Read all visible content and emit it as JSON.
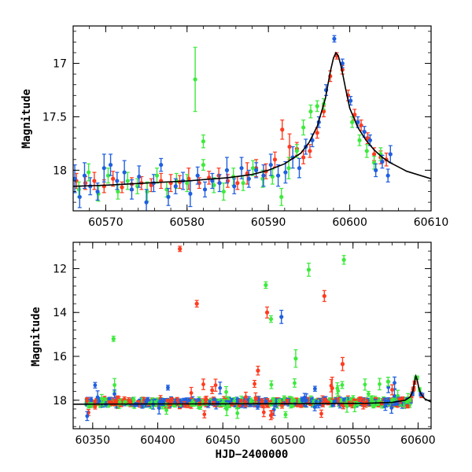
{
  "chart_data": [
    {
      "type": "scatter",
      "ylabel": "Magnitude",
      "xlabel": "",
      "xlim": [
        60566,
        60610
      ],
      "ylim": [
        18.38,
        16.65
      ],
      "y_inverted": true,
      "x_ticks": [
        60570,
        60580,
        60590,
        60600,
        60610
      ],
      "y_ticks": [
        17,
        17.5,
        18
      ],
      "y_tick_labels": [
        "17",
        "17.5",
        "18"
      ],
      "colors": {
        "red": "#ff3b1f",
        "green": "#3dea3d",
        "blue": "#1f5fe0",
        "model": "#000000"
      },
      "model_curve": {
        "description": "microlensing-like model",
        "x": [
          60566,
          60570,
          60575,
          60580,
          60585,
          60588,
          60590,
          60592,
          60594,
          60595,
          60596,
          60597,
          60597.6,
          60598,
          60598.3,
          60598.6,
          60599,
          60599.5,
          60600,
          60601,
          60602,
          60603,
          60604,
          60605,
          60607,
          60610
        ],
        "y": [
          18.15,
          18.14,
          18.12,
          18.1,
          18.07,
          18.04,
          18.0,
          17.94,
          17.84,
          17.74,
          17.59,
          17.33,
          17.08,
          16.95,
          16.9,
          16.93,
          17.05,
          17.24,
          17.42,
          17.6,
          17.72,
          17.81,
          17.88,
          17.93,
          18.01,
          18.08
        ]
      },
      "series": [
        {
          "name": "",
          "color": "red",
          "points": [
            [
              60566.4,
              18.1,
              0.07
            ],
            [
              60567.5,
              18.12,
              0.06
            ],
            [
              60568.6,
              18.1,
              0.08
            ],
            [
              60569.8,
              18.15,
              0.06
            ],
            [
              60570.9,
              18.08,
              0.07
            ],
            [
              60572,
              18.16,
              0.05
            ],
            [
              60573.2,
              18.13,
              0.06
            ],
            [
              60574.4,
              18.12,
              0.06
            ],
            [
              60575.6,
              18.14,
              0.06
            ],
            [
              60576.8,
              18.1,
              0.07
            ],
            [
              60578,
              18.12,
              0.08
            ],
            [
              60579.1,
              18.11,
              0.06
            ],
            [
              60580.2,
              18.08,
              0.1
            ],
            [
              60581.5,
              18.12,
              0.05
            ],
            [
              60582.7,
              18.07,
              0.06
            ],
            [
              60583.9,
              18.05,
              0.07
            ],
            [
              60585,
              18.1,
              0.06
            ],
            [
              60586.2,
              18.12,
              0.06
            ],
            [
              60587.4,
              18.03,
              0.1
            ],
            [
              60588.5,
              17.98,
              0.08
            ],
            [
              60589.7,
              18.01,
              0.07
            ],
            [
              60590.8,
              17.9,
              0.07
            ],
            [
              60591.7,
              17.62,
              0.09
            ],
            [
              60592.6,
              17.78,
              0.12
            ],
            [
              60593.5,
              17.8,
              0.06
            ],
            [
              60594.3,
              17.88,
              0.06
            ],
            [
              60595.1,
              17.82,
              0.06
            ],
            [
              60596,
              17.65,
              0.05
            ],
            [
              60596.8,
              17.45,
              0.05
            ],
            [
              60597.6,
              17.12,
              0.05
            ],
            [
              60598.4,
              16.93,
              0.03
            ],
            [
              60599.1,
              17.06,
              0.04
            ],
            [
              60599.8,
              17.3,
              0.05
            ],
            [
              60600.6,
              17.48,
              0.05
            ],
            [
              60601.4,
              17.58,
              0.05
            ],
            [
              60602.2,
              17.7,
              0.05
            ],
            [
              60603,
              17.85,
              0.06
            ],
            [
              60603.8,
              17.88,
              0.06
            ],
            [
              60604.5,
              17.9,
              0.06
            ]
          ]
        },
        {
          "name": "",
          "color": "green",
          "points": [
            [
              60566.7,
              18.18,
              0.07
            ],
            [
              60567.9,
              18.02,
              0.08
            ],
            [
              60569.1,
              18.22,
              0.07
            ],
            [
              60570.3,
              18.05,
              0.07
            ],
            [
              60571.5,
              18.2,
              0.07
            ],
            [
              60572.7,
              18.1,
              0.08
            ],
            [
              60573.9,
              18.15,
              0.07
            ],
            [
              60575.1,
              18.2,
              0.09
            ],
            [
              60576.3,
              18.05,
              0.07
            ],
            [
              60577.5,
              18.18,
              0.07
            ],
            [
              60578.7,
              18.1,
              0.07
            ],
            [
              60580,
              18.12,
              0.08
            ],
            [
              60581,
              17.15,
              0.3
            ],
            [
              60582,
              17.73,
              0.06
            ],
            [
              60582,
              17.95,
              0.05
            ],
            [
              60583.3,
              18.14,
              0.07
            ],
            [
              60584.5,
              18.2,
              0.08
            ],
            [
              60585.7,
              18.06,
              0.08
            ],
            [
              60586.9,
              18.12,
              0.07
            ],
            [
              60588.1,
              17.98,
              0.07
            ],
            [
              60589.3,
              18.08,
              0.08
            ],
            [
              60590.5,
              18.06,
              0.07
            ],
            [
              60591.6,
              18.25,
              0.08
            ],
            [
              60592.5,
              17.98,
              0.1
            ],
            [
              60593.5,
              17.82,
              0.06
            ],
            [
              60594.3,
              17.6,
              0.07
            ],
            [
              60595.2,
              17.45,
              0.06
            ],
            [
              60596,
              17.4,
              0.05
            ],
            [
              60596.8,
              17.38,
              0.05
            ],
            [
              60600.3,
              17.55,
              0.05
            ],
            [
              60601.2,
              17.72,
              0.05
            ],
            [
              60602.1,
              17.82,
              0.06
            ],
            [
              60603,
              17.93,
              0.06
            ],
            [
              60603.8,
              17.85,
              0.06
            ]
          ]
        },
        {
          "name": "",
          "color": "blue",
          "points": [
            [
              60566.2,
              18.08,
              0.13
            ],
            [
              60566.8,
              18.25,
              0.1
            ],
            [
              60567.4,
              18.05,
              0.12
            ],
            [
              60568.1,
              18.15,
              0.08
            ],
            [
              60569,
              18.2,
              0.08
            ],
            [
              60569.8,
              17.98,
              0.13
            ],
            [
              60570.6,
              17.95,
              0.1
            ],
            [
              60571.4,
              18.1,
              0.08
            ],
            [
              60572.3,
              18.02,
              0.11
            ],
            [
              60573.2,
              18.18,
              0.09
            ],
            [
              60574.1,
              18.06,
              0.1
            ],
            [
              60575,
              18.3,
              0.12
            ],
            [
              60575.9,
              18.12,
              0.08
            ],
            [
              60576.8,
              17.95,
              0.06
            ],
            [
              60577.7,
              18.25,
              0.08
            ],
            [
              60578.6,
              18.15,
              0.07
            ],
            [
              60579.5,
              18.1,
              0.08
            ],
            [
              60580.4,
              18.22,
              0.12
            ],
            [
              60581.3,
              18.05,
              0.08
            ],
            [
              60582.2,
              18.18,
              0.07
            ],
            [
              60583.1,
              18.1,
              0.07
            ],
            [
              60584,
              18.12,
              0.08
            ],
            [
              60584.9,
              18.0,
              0.12
            ],
            [
              60585.8,
              18.15,
              0.07
            ],
            [
              60586.7,
              17.98,
              0.1
            ],
            [
              60587.6,
              18.08,
              0.08
            ],
            [
              60588.5,
              18.0,
              0.07
            ],
            [
              60589.4,
              18.05,
              0.1
            ],
            [
              60590.3,
              17.95,
              0.1
            ],
            [
              60591.2,
              18.05,
              0.1
            ],
            [
              60592.1,
              18.02,
              0.1
            ],
            [
              60593,
              17.88,
              0.1
            ],
            [
              60593.8,
              17.98,
              0.09
            ],
            [
              60594.6,
              17.78,
              0.07
            ],
            [
              60595.4,
              17.72,
              0.06
            ],
            [
              60596.2,
              17.55,
              0.05
            ],
            [
              60597.1,
              17.25,
              0.05
            ],
            [
              60598.1,
              16.77,
              0.03
            ],
            [
              60599.1,
              17.0,
              0.04
            ],
            [
              60600.1,
              17.35,
              0.04
            ],
            [
              60601,
              17.55,
              0.05
            ],
            [
              60601.8,
              17.64,
              0.05
            ],
            [
              60602.5,
              17.72,
              0.05
            ],
            [
              60603.2,
              18.0,
              0.06
            ],
            [
              60604,
              17.92,
              0.06
            ],
            [
              60604.7,
              18.05,
              0.06
            ],
            [
              60605,
              17.85,
              0.08
            ]
          ]
        }
      ]
    },
    {
      "type": "scatter",
      "ylabel": "Magnitude",
      "xlabel": "HJD−2400000",
      "xlim": [
        60335,
        60610
      ],
      "ylim": [
        19.3,
        10.8
      ],
      "y_inverted": true,
      "x_ticks": [
        60350,
        60400,
        60450,
        60500,
        60550,
        60600
      ],
      "y_ticks": [
        12,
        14,
        16,
        18
      ],
      "y_tick_labels": [
        "12",
        "14",
        "16",
        "18"
      ],
      "colors": {
        "red": "#ff3b1f",
        "green": "#3dea3d",
        "blue": "#1f5fe0",
        "model": "#000000"
      },
      "model_curve": {
        "x": [
          60335,
          60400,
          60500,
          60560,
          60580,
          60590,
          60594,
          60596,
          60597.5,
          60598.3,
          60599.2,
          60600.5,
          60602,
          60605,
          60610
        ],
        "y": [
          18.18,
          18.17,
          18.16,
          18.14,
          18.1,
          18.0,
          17.85,
          17.6,
          17.1,
          16.9,
          17.05,
          17.42,
          17.7,
          17.93,
          18.08
        ]
      },
      "band": {
        "x_start": 60345,
        "x_end": 60595,
        "center": 18.1,
        "spread": 0.15
      },
      "outliers": [
        {
          "color": "red",
          "x": 60417,
          "y": 11.1,
          "e": 0.12
        },
        {
          "color": "red",
          "x": 60430,
          "y": 13.6,
          "e": 0.15
        },
        {
          "color": "green",
          "x": 60366,
          "y": 15.2,
          "e": 0.12
        },
        {
          "color": "green",
          "x": 60483,
          "y": 12.75,
          "e": 0.15
        },
        {
          "color": "red",
          "x": 60484,
          "y": 14.0,
          "e": 0.25
        },
        {
          "color": "green",
          "x": 60487,
          "y": 14.3,
          "e": 0.15
        },
        {
          "color": "blue",
          "x": 60495,
          "y": 14.2,
          "e": 0.3
        },
        {
          "color": "green",
          "x": 60506,
          "y": 16.1,
          "e": 0.4
        },
        {
          "color": "green",
          "x": 60516,
          "y": 12.05,
          "e": 0.3
        },
        {
          "color": "red",
          "x": 60528,
          "y": 13.25,
          "e": 0.25
        },
        {
          "color": "green",
          "x": 60543,
          "y": 11.6,
          "e": 0.2
        },
        {
          "color": "red",
          "x": 60542,
          "y": 16.35,
          "e": 0.3
        },
        {
          "color": "red",
          "x": 60477,
          "y": 16.65,
          "e": 0.2
        },
        {
          "color": "red",
          "x": 60534,
          "y": 17.45,
          "e": 0.5
        },
        {
          "color": "green",
          "x": 60577,
          "y": 17.15,
          "e": 0.2
        }
      ]
    }
  ]
}
